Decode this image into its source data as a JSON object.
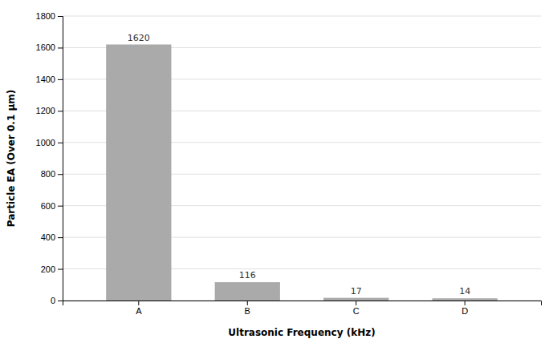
{
  "chart_data": {
    "type": "bar",
    "xlabel": "Ultrasonic Frequency (kHz)",
    "ylabel": "Particle EA (Over 0.1 μm)",
    "categories": [
      "A",
      "B",
      "C",
      "D"
    ],
    "values": [
      1620,
      116,
      17,
      14
    ],
    "color": "#aaaaaa",
    "ylim": [
      0,
      1800
    ],
    "yticks": [
      0,
      200,
      400,
      600,
      800,
      1000,
      1200,
      1400,
      1600,
      1800
    ],
    "grid": true,
    "data_labels": true
  }
}
